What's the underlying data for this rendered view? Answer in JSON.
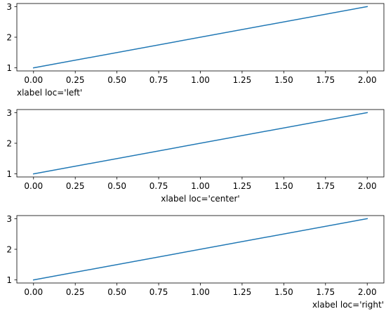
{
  "colors": {
    "line": "#1f77b4",
    "axes": "#000000",
    "background": "#ffffff"
  },
  "chart_data": [
    {
      "type": "line",
      "x": [
        0,
        2
      ],
      "y": [
        1,
        3
      ],
      "xlabel": "xlabel loc='left'",
      "xlabel_loc": "left",
      "xlim": [
        -0.1,
        2.1
      ],
      "ylim": [
        0.9,
        3.1
      ],
      "xticks": [
        0.0,
        0.25,
        0.5,
        0.75,
        1.0,
        1.25,
        1.5,
        1.75,
        2.0
      ],
      "xtick_labels": [
        "0.00",
        "0.25",
        "0.50",
        "0.75",
        "1.00",
        "1.25",
        "1.50",
        "1.75",
        "2.00"
      ],
      "yticks": [
        1,
        2,
        3
      ],
      "ytick_labels": [
        "1",
        "2",
        "3"
      ],
      "grid": false
    },
    {
      "type": "line",
      "x": [
        0,
        2
      ],
      "y": [
        1,
        3
      ],
      "xlabel": "xlabel loc='center'",
      "xlabel_loc": "center",
      "xlim": [
        -0.1,
        2.1
      ],
      "ylim": [
        0.9,
        3.1
      ],
      "xticks": [
        0.0,
        0.25,
        0.5,
        0.75,
        1.0,
        1.25,
        1.5,
        1.75,
        2.0
      ],
      "xtick_labels": [
        "0.00",
        "0.25",
        "0.50",
        "0.75",
        "1.00",
        "1.25",
        "1.50",
        "1.75",
        "2.00"
      ],
      "yticks": [
        1,
        2,
        3
      ],
      "ytick_labels": [
        "1",
        "2",
        "3"
      ],
      "grid": false
    },
    {
      "type": "line",
      "x": [
        0,
        2
      ],
      "y": [
        1,
        3
      ],
      "xlabel": "xlabel loc='right'",
      "xlabel_loc": "right",
      "xlim": [
        -0.1,
        2.1
      ],
      "ylim": [
        0.9,
        3.1
      ],
      "xticks": [
        0.0,
        0.25,
        0.5,
        0.75,
        1.0,
        1.25,
        1.5,
        1.75,
        2.0
      ],
      "xtick_labels": [
        "0.00",
        "0.25",
        "0.50",
        "0.75",
        "1.00",
        "1.25",
        "1.50",
        "1.75",
        "2.00"
      ],
      "yticks": [
        1,
        2,
        3
      ],
      "ytick_labels": [
        "1",
        "2",
        "3"
      ],
      "grid": false
    }
  ]
}
